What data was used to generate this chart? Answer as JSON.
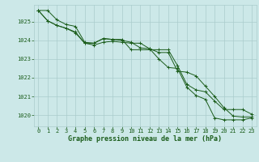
{
  "background_color": "#cce8e8",
  "plot_bg_color": "#cce8e8",
  "grid_color": "#aacccc",
  "line_color": "#1a5c1a",
  "marker_color": "#1a5c1a",
  "xlabel": "Graphe pression niveau de la mer (hPa)",
  "xlabel_color": "#1a5c1a",
  "xlim": [
    -0.5,
    23.5
  ],
  "ylim": [
    1019.4,
    1025.9
  ],
  "yticks": [
    1020,
    1021,
    1022,
    1023,
    1024,
    1025
  ],
  "xticks": [
    0,
    1,
    2,
    3,
    4,
    5,
    6,
    7,
    8,
    9,
    10,
    11,
    12,
    13,
    14,
    15,
    16,
    17,
    18,
    19,
    20,
    21,
    22,
    23
  ],
  "line1_x": [
    0,
    1,
    2,
    3,
    4,
    5,
    6,
    7,
    8,
    9,
    10,
    11,
    12,
    13,
    14,
    15,
    16,
    17,
    18,
    19,
    20,
    21,
    22,
    23
  ],
  "line1_y": [
    1025.6,
    1025.6,
    1025.1,
    1024.85,
    1024.75,
    1023.9,
    1023.85,
    1024.1,
    1024.05,
    1024.0,
    1023.9,
    1023.6,
    1023.55,
    1023.0,
    1022.55,
    1022.5,
    1021.5,
    1021.05,
    1020.85,
    1019.85,
    1019.75,
    1019.75,
    1019.75,
    1019.85
  ],
  "line2_x": [
    0,
    1,
    2,
    3,
    4,
    5,
    6,
    7,
    8,
    9,
    10,
    11,
    12,
    13,
    14,
    15,
    16,
    17,
    18,
    19,
    20,
    21,
    22,
    23
  ],
  "line2_y": [
    1025.6,
    1025.05,
    1024.8,
    1024.65,
    1024.45,
    1023.85,
    1023.75,
    1023.9,
    1023.95,
    1023.9,
    1023.85,
    1023.85,
    1023.55,
    1023.35,
    1023.35,
    1022.35,
    1022.3,
    1022.1,
    1021.55,
    1021.0,
    1020.4,
    1019.95,
    1019.9,
    1019.9
  ],
  "line3_x": [
    0,
    1,
    2,
    3,
    4,
    5,
    6,
    7,
    8,
    9,
    10,
    11,
    12,
    13,
    14,
    15,
    16,
    17,
    18,
    19,
    20,
    21,
    22,
    23
  ],
  "line3_y": [
    1025.6,
    1025.05,
    1024.8,
    1024.65,
    1024.4,
    1023.85,
    1023.85,
    1024.1,
    1024.05,
    1024.05,
    1023.5,
    1023.5,
    1023.5,
    1023.5,
    1023.5,
    1022.65,
    1021.65,
    1021.35,
    1021.25,
    1020.75,
    1020.3,
    1020.3,
    1020.3,
    1020.05
  ],
  "tick_fontsize": 5,
  "label_fontsize": 6
}
